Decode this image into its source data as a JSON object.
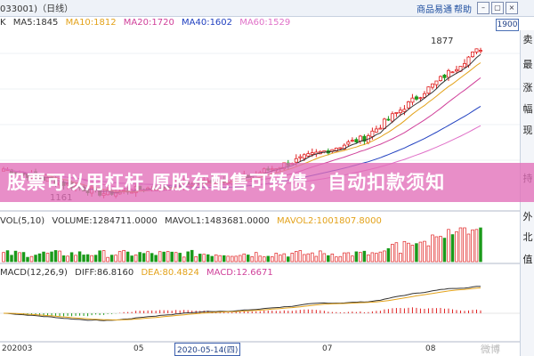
{
  "window": {
    "title": "033001)（日线）"
  },
  "top_links": {
    "link1": "商品易通",
    "link2": "帮助"
  },
  "price_box": "1900",
  "ma_legend": {
    "k": "K",
    "ma5": "MA5:1845",
    "ma10": "MA10:1812",
    "ma20": "MA20:1720",
    "ma40": "MA40:1602",
    "ma60": "MA60:1529"
  },
  "annotations": {
    "high": "1877",
    "low": "1161"
  },
  "banner_text": "股票可以用杠杆 原股东配售可转债，自动扣款须知",
  "volume_legend": {
    "vol": "VOL(5,10)",
    "volume": "VOLUME:1284711.0000",
    "mavol1": "MAVOL1:1483681.0000",
    "mavol2": "MAVOL2:1001807.8000"
  },
  "macd_legend": {
    "macd": "MACD(12,26,9)",
    "diff": "DIFF:86.8160",
    "dea": "DEA:80.4824",
    "macd_val": "MACD:12.6671"
  },
  "x_axis": {
    "label0": "202003",
    "label1": "05",
    "selected_date": "2020-05-14(四)",
    "label2": "07",
    "label3": "08"
  },
  "side_panel": [
    "卖",
    "最",
    "涨",
    "幅",
    "现",
    "持",
    "外",
    "北",
    "值"
  ],
  "watermark": "微博",
  "colors": {
    "ma5": "#333333",
    "ma10": "#e3a21a",
    "ma20": "#d0409a",
    "ma40": "#2040c0",
    "ma60": "#e070c8",
    "up": "#e02020",
    "down": "#1a9a1a"
  }
}
